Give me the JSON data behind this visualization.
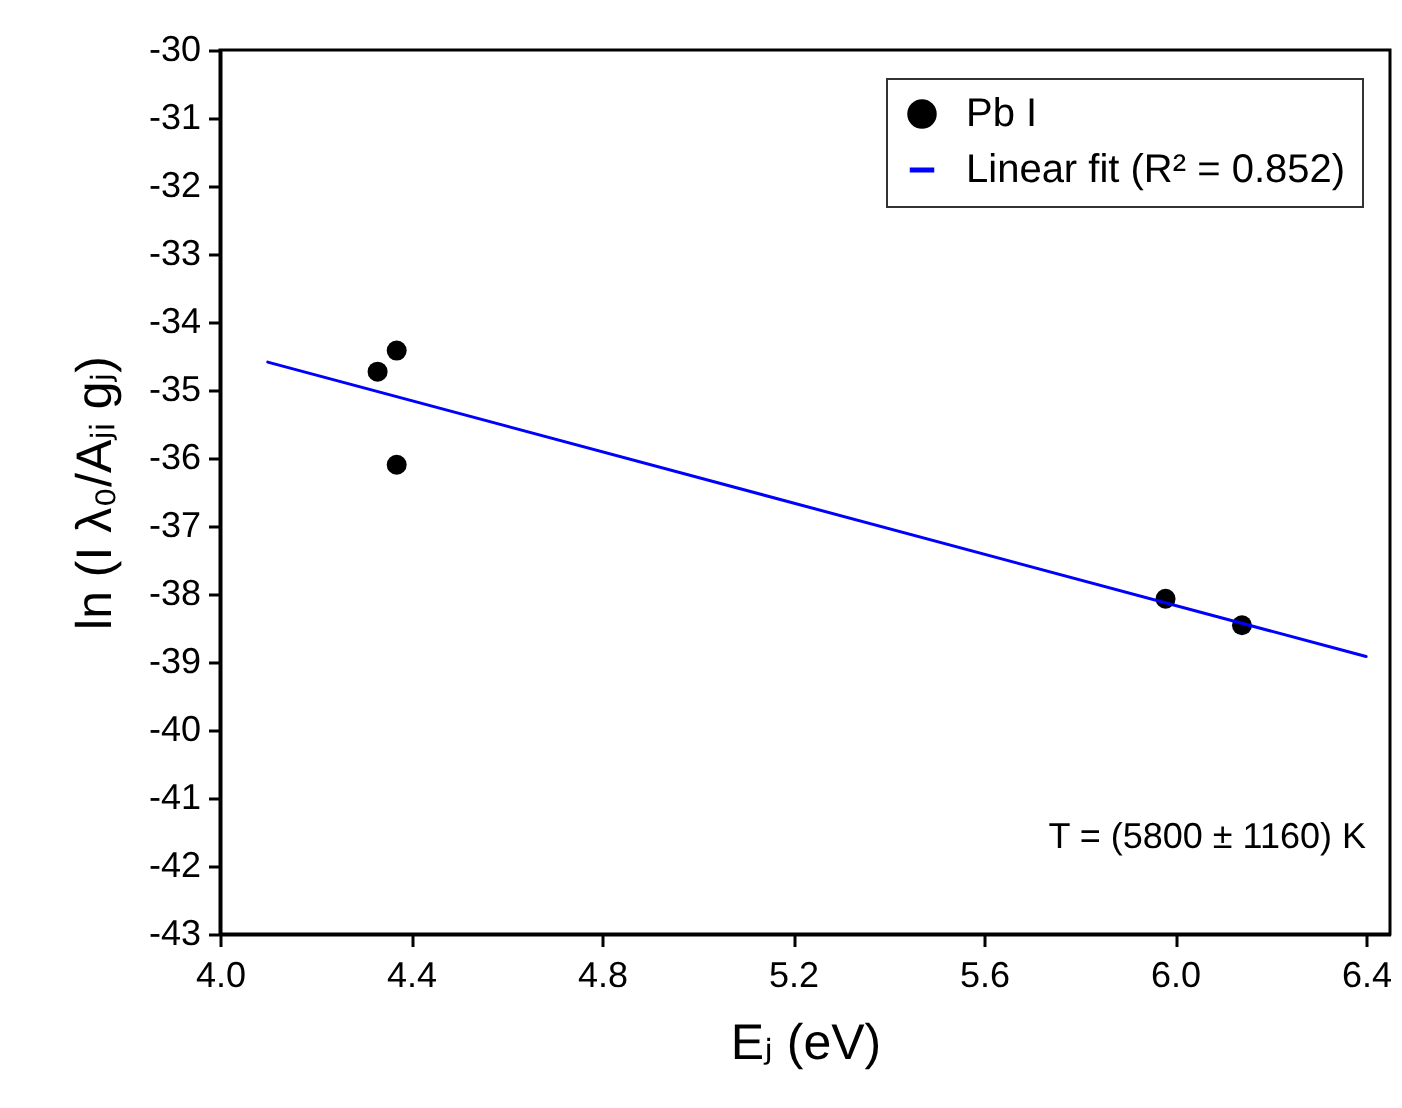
{
  "chart_data": {
    "type": "scatter",
    "xlabel": "Eⱼ (eV)",
    "ylabel": "ln (I λ₀/Aⱼᵢ gⱼ)",
    "annotations": [
      "T = (5800 ± 1160) K"
    ],
    "series": [
      {
        "name": "Pb I",
        "type": "scatter",
        "marker": "circle",
        "color": "#000000",
        "x": [
          4.33,
          4.37,
          4.37,
          5.98,
          6.14
        ],
        "values": [
          -34.73,
          -34.42,
          -36.1,
          -38.07,
          -38.46
        ]
      },
      {
        "name": "Linear fit (R² = 0.852)",
        "type": "line",
        "marker": "none",
        "color": "#0000ff",
        "x": [
          4.1,
          6.4
        ],
        "values": [
          -34.59,
          -38.92
        ]
      }
    ],
    "xlim": [
      4.0,
      6.45
    ],
    "xticks": [
      {
        "value": 4.0,
        "label": "4.0"
      },
      {
        "value": 4.4,
        "label": "4.4"
      },
      {
        "value": 4.8,
        "label": "4.8"
      },
      {
        "value": 5.2,
        "label": "5.2"
      },
      {
        "value": 5.6,
        "label": "5.6"
      },
      {
        "value": 6.0,
        "label": "6.0"
      },
      {
        "value": 6.4,
        "label": "6.4"
      }
    ],
    "ylim": [
      -43,
      -30
    ],
    "yticks": [
      -43,
      -42,
      -41,
      -40,
      -39,
      -38,
      -37,
      -36,
      -35,
      -34,
      -33,
      -32,
      -31,
      -30
    ],
    "legend": "top right",
    "grid": false
  }
}
